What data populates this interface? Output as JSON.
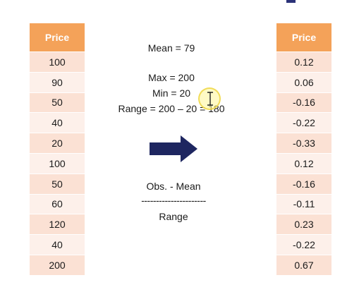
{
  "left_table": {
    "header": "Price",
    "values": [
      "100",
      "90",
      "50",
      "40",
      "20",
      "100",
      "50",
      "60",
      "120",
      "40",
      "200"
    ]
  },
  "right_table": {
    "header": "Price",
    "values": [
      "0.12",
      "0.06",
      "-0.16",
      "-0.22",
      "-0.33",
      "0.12",
      "-0.16",
      "-0.11",
      "0.23",
      "-0.22",
      "0.67"
    ]
  },
  "stats": {
    "mean": "Mean = 79",
    "max": "Max = 200",
    "min": "Min = 20",
    "range": "Range = 200 – 20 = 180"
  },
  "formula": {
    "numerator": "Obs. - Mean",
    "divider": "----------------------",
    "denominator": "Range"
  },
  "colors": {
    "header_bg": "#f4a259",
    "row_odd": "#fbe1d4",
    "row_even": "#fdf0ea",
    "arrow": "#1e2660"
  },
  "icons": {
    "arrow": "right-arrow-icon",
    "cursor": "text-cursor-icon"
  }
}
